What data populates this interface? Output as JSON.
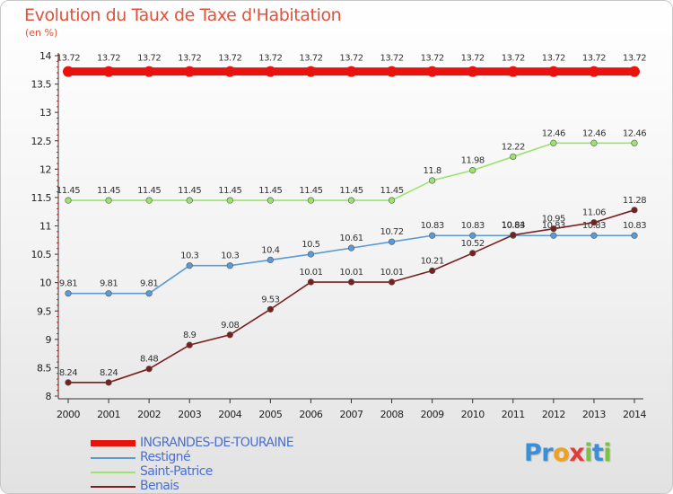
{
  "chart_data": {
    "type": "line",
    "title": "Evolution du Taux de Taxe d'Habitation",
    "unit_label": "(en %)",
    "x": [
      "2000",
      "2001",
      "2002",
      "2003",
      "2004",
      "2005",
      "2006",
      "2007",
      "2008",
      "2009",
      "2010",
      "2011",
      "2012",
      "2013",
      "2014"
    ],
    "ylim": [
      8,
      14
    ],
    "yticks": [
      "8",
      "8.5",
      "9",
      "9.5",
      "10",
      "10.5",
      "11",
      "11.5",
      "12",
      "12.5",
      "13",
      "13.5",
      "14"
    ],
    "grid": false,
    "legend_position": "bottom-left",
    "series": [
      {
        "name": "INGRANDES-DE-TOURAINE",
        "color": "#e8130f",
        "values": [
          13.72,
          13.72,
          13.72,
          13.72,
          13.72,
          13.72,
          13.72,
          13.72,
          13.72,
          13.72,
          13.72,
          13.72,
          13.72,
          13.72,
          13.72
        ],
        "labels": [
          "13.72",
          "13.72",
          "13.72",
          "13.72",
          "13.72",
          "13.72",
          "13.72",
          "13.72",
          "13.72",
          "13.72",
          "13.72",
          "13.72",
          "13.72",
          "13.72",
          "13.72"
        ]
      },
      {
        "name": "Restigné",
        "color": "#5b9bd5",
        "values": [
          9.81,
          9.81,
          9.81,
          10.3,
          10.3,
          10.4,
          10.5,
          10.61,
          10.72,
          10.83,
          10.83,
          10.83,
          10.83,
          10.83,
          10.83
        ],
        "labels": [
          "9.81",
          "9.81",
          "9.81",
          "10.3",
          "10.3",
          "10.4",
          "10.5",
          "10.61",
          "10.72",
          "10.83",
          "10.83",
          "10.83",
          "10.83",
          "10.83",
          "10.83"
        ]
      },
      {
        "name": "Saint-Patrice",
        "color": "#9be36f",
        "values": [
          11.45,
          11.45,
          11.45,
          11.45,
          11.45,
          11.45,
          11.45,
          11.45,
          11.45,
          11.8,
          11.98,
          12.22,
          12.46,
          12.46,
          12.46
        ],
        "labels": [
          "11.45",
          "11.45",
          "11.45",
          "11.45",
          "11.45",
          "11.45",
          "11.45",
          "11.45",
          "11.45",
          "11.8",
          "11.98",
          "12.22",
          "12.46",
          "12.46",
          "12.46"
        ]
      },
      {
        "name": "Benais",
        "color": "#7a1f1f",
        "values": [
          8.24,
          8.24,
          8.48,
          8.9,
          9.08,
          9.53,
          10.01,
          10.01,
          10.01,
          10.21,
          10.52,
          10.84,
          10.95,
          11.06,
          11.28
        ],
        "labels": [
          "8.24",
          "8.24",
          "8.48",
          "8.9",
          "9.08",
          "9.53",
          "10.01",
          "10.01",
          "10.01",
          "10.21",
          "10.52",
          "10.84",
          "10.95",
          "11.06",
          "11.28"
        ]
      }
    ]
  },
  "branding": {
    "logo_letters": [
      "P",
      "r",
      "o",
      "x",
      "i",
      "t",
      "i"
    ],
    "logo_colors": [
      "#3a8fd6",
      "#3a8fd6",
      "#f0a020",
      "#e23b3b",
      "#7cc242",
      "#3a8fd6",
      "#7cc242"
    ]
  }
}
